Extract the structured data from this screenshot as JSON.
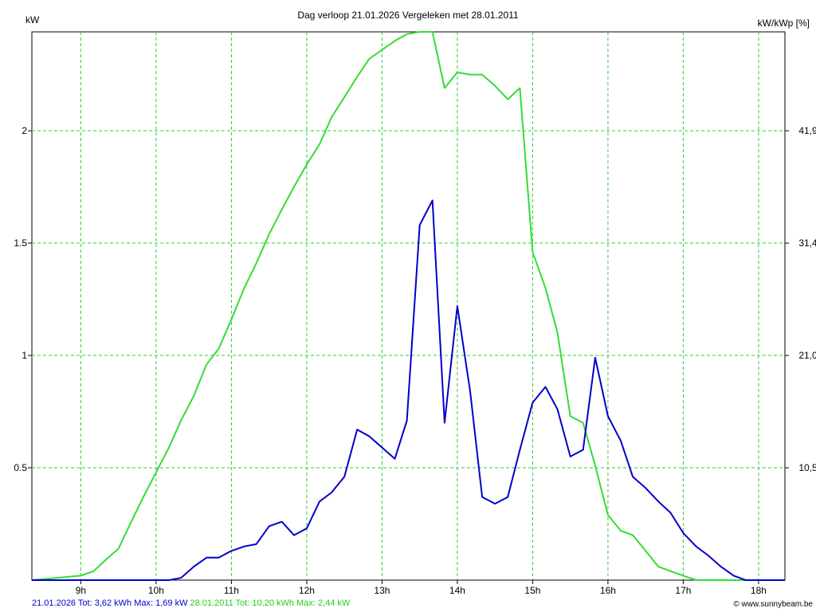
{
  "chart_data": {
    "type": "line",
    "title": "Dag  verloop 21.01.2026   Vergeleken met 28.01.2011",
    "ylabel_left": "kW",
    "ylabel_right": "kW/kWp [%]",
    "xlim": [
      8.35,
      18.35
    ],
    "ylim": [
      0,
      2.44
    ],
    "x_ticks": [
      9,
      10,
      11,
      12,
      13,
      14,
      15,
      16,
      17,
      18
    ],
    "x_tick_labels": [
      "9h",
      "10h",
      "11h",
      "12h",
      "13h",
      "14h",
      "15h",
      "16h",
      "17h",
      "18h"
    ],
    "y_ticks_left": [
      0.5,
      1,
      1.5,
      2
    ],
    "y_tick_labels_left": [
      "0.5",
      "1",
      "1.5",
      "2"
    ],
    "y_tick_labels_right": [
      "10,5",
      "21,0",
      "31,4",
      "41,9"
    ],
    "grid": true,
    "colors": {
      "grid": "#33cc33",
      "axis": "#000000"
    },
    "series": [
      {
        "name": "28.01.2011",
        "color": "#33dd33",
        "x": [
          8.35,
          8.67,
          9.0,
          9.17,
          9.33,
          9.5,
          9.67,
          9.83,
          10.0,
          10.17,
          10.33,
          10.5,
          10.67,
          10.83,
          11.0,
          11.17,
          11.33,
          11.5,
          11.67,
          11.83,
          12.0,
          12.17,
          12.33,
          12.5,
          12.67,
          12.83,
          13.0,
          13.17,
          13.33,
          13.5,
          13.67,
          13.83,
          14.0,
          14.17,
          14.33,
          14.5,
          14.67,
          14.83,
          15.0,
          15.17,
          15.33,
          15.5,
          15.67,
          15.83,
          16.0,
          16.17,
          16.33,
          16.5,
          16.67,
          16.83,
          17.0,
          17.17,
          17.33,
          17.5,
          17.67,
          17.83,
          18.0,
          18.17,
          18.35
        ],
        "y": [
          0,
          0.01,
          0.02,
          0.04,
          0.09,
          0.14,
          0.26,
          0.37,
          0.48,
          0.59,
          0.71,
          0.82,
          0.96,
          1.03,
          1.16,
          1.3,
          1.41,
          1.54,
          1.65,
          1.75,
          1.85,
          1.94,
          2.06,
          2.15,
          2.24,
          2.32,
          2.36,
          2.4,
          2.43,
          2.44,
          2.44,
          2.19,
          2.26,
          2.25,
          2.25,
          2.2,
          2.14,
          2.19,
          1.46,
          1.3,
          1.1,
          0.73,
          0.7,
          0.51,
          0.29,
          0.22,
          0.2,
          0.13,
          0.06,
          0.04,
          0.02,
          0,
          0,
          0,
          0,
          0,
          0,
          0,
          0
        ]
      },
      {
        "name": "21.01.2026",
        "color": "#0000cc",
        "x": [
          8.35,
          9.0,
          9.67,
          10.0,
          10.17,
          10.33,
          10.5,
          10.67,
          10.83,
          11.0,
          11.17,
          11.33,
          11.5,
          11.67,
          11.83,
          12.0,
          12.17,
          12.33,
          12.5,
          12.67,
          12.83,
          13.0,
          13.17,
          13.33,
          13.5,
          13.67,
          13.83,
          14.0,
          14.17,
          14.33,
          14.5,
          14.67,
          14.83,
          15.0,
          15.17,
          15.33,
          15.5,
          15.67,
          15.83,
          16.0,
          16.17,
          16.33,
          16.5,
          16.67,
          16.83,
          17.0,
          17.17,
          17.33,
          17.5,
          17.67,
          17.83,
          18.0,
          18.17,
          18.35
        ],
        "y": [
          0,
          0,
          0,
          0,
          0,
          0.01,
          0.06,
          0.1,
          0.1,
          0.13,
          0.15,
          0.16,
          0.24,
          0.26,
          0.2,
          0.23,
          0.35,
          0.39,
          0.46,
          0.67,
          0.64,
          0.59,
          0.54,
          0.71,
          1.58,
          1.69,
          0.7,
          1.22,
          0.84,
          0.37,
          0.34,
          0.37,
          0.58,
          0.79,
          0.86,
          0.76,
          0.55,
          0.58,
          0.99,
          0.73,
          0.62,
          0.46,
          0.41,
          0.35,
          0.3,
          0.21,
          0.15,
          0.11,
          0.06,
          0.02,
          0,
          0,
          0,
          0
        ]
      }
    ]
  },
  "footer": {
    "blue_text": "21.01.2026 Tot: 3,62 kWh Max: 1,69 kW",
    "green_text": "28.01.2011 Tot: 10,20 kWh Max: 2,44 kW"
  },
  "credit": "© www.sunnybeam.be"
}
